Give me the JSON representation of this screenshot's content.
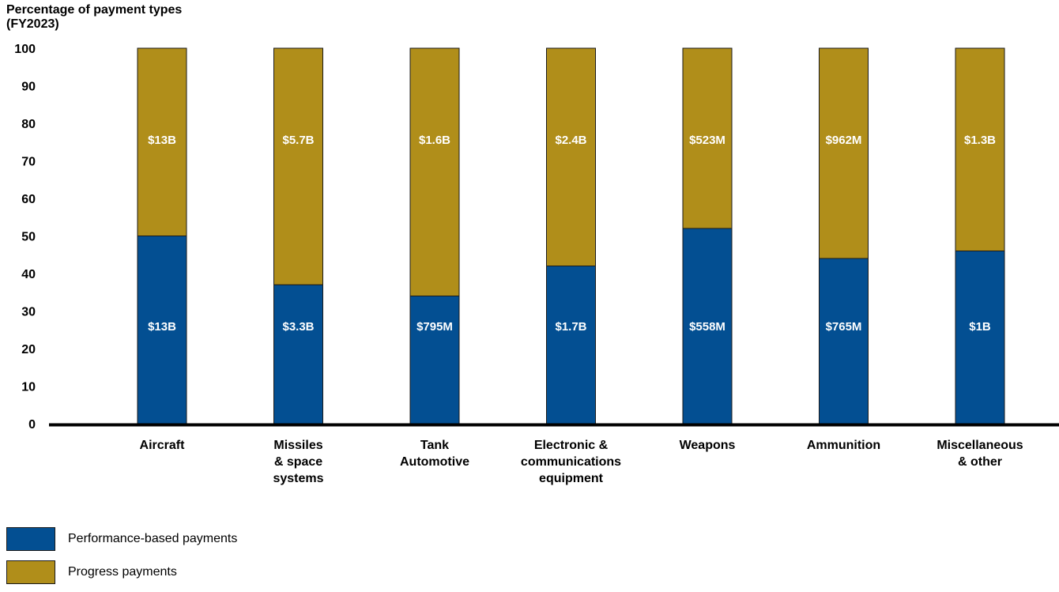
{
  "chart_data": {
    "type": "bar",
    "stacked": true,
    "ylabel_lines": [
      "Percentage of payment types",
      "(FY2023)"
    ],
    "ylim": [
      0,
      100
    ],
    "yticks": [
      0,
      10,
      20,
      30,
      40,
      50,
      60,
      70,
      80,
      90,
      100
    ],
    "grid": false,
    "legend_placement": "bottom-left",
    "categories": [
      [
        "Aircraft"
      ],
      [
        "Missiles",
        "& space",
        "systems"
      ],
      [
        "Tank",
        "Automotive"
      ],
      [
        "Electronic &",
        "communications",
        "equipment"
      ],
      [
        "Weapons"
      ],
      [
        "Ammunition"
      ],
      [
        "Miscellaneous",
        "& other"
      ]
    ],
    "series": [
      {
        "name": "Performance-based payments",
        "color": "#034F92",
        "values": [
          50,
          37,
          34,
          42,
          52,
          44,
          46
        ],
        "labels": [
          "$13B",
          "$3.3B",
          "$795M",
          "$1.7B",
          "$558M",
          "$765M",
          "$1B"
        ]
      },
      {
        "name": "Progress payments",
        "color": "#B08E1A",
        "values": [
          50,
          63,
          66,
          58,
          48,
          56,
          54
        ],
        "labels": [
          "$13B",
          "$5.7B",
          "$1.6B",
          "$2.4B",
          "$523M",
          "$962M",
          "$1.3B"
        ]
      }
    ]
  }
}
